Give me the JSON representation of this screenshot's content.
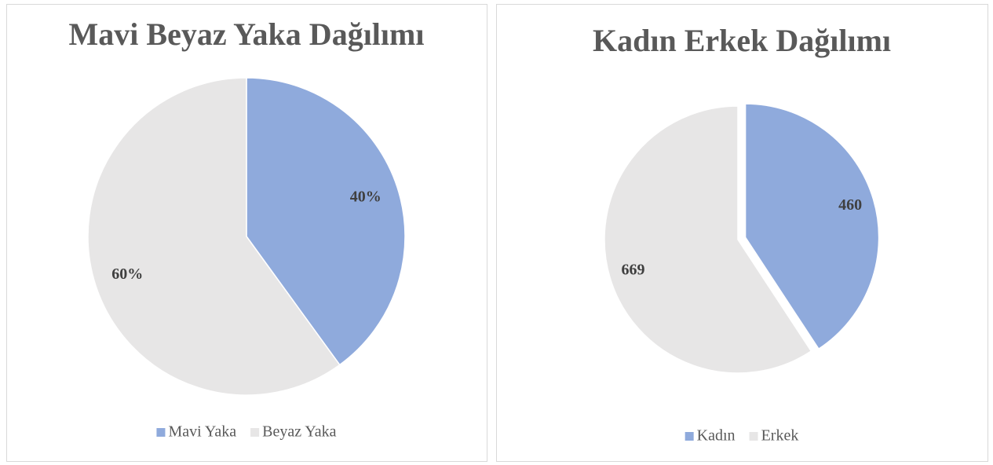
{
  "chart_data": [
    {
      "type": "pie",
      "title": "Mavi Beyaz Yaka Dağılımı",
      "categories": [
        "Mavi Yaka",
        "Beyaz Yaka"
      ],
      "values": [
        40,
        60
      ],
      "value_labels": [
        "40%",
        "60%"
      ],
      "colors": [
        "#8faadc",
        "#e7e6e6"
      ],
      "legend": "bottom"
    },
    {
      "type": "pie",
      "title": "Kadın Erkek Dağılımı",
      "categories": [
        "Kadın",
        "Erkek"
      ],
      "values": [
        460,
        669
      ],
      "colors": [
        "#8faadc",
        "#e7e6e6"
      ],
      "legend": "bottom"
    }
  ]
}
